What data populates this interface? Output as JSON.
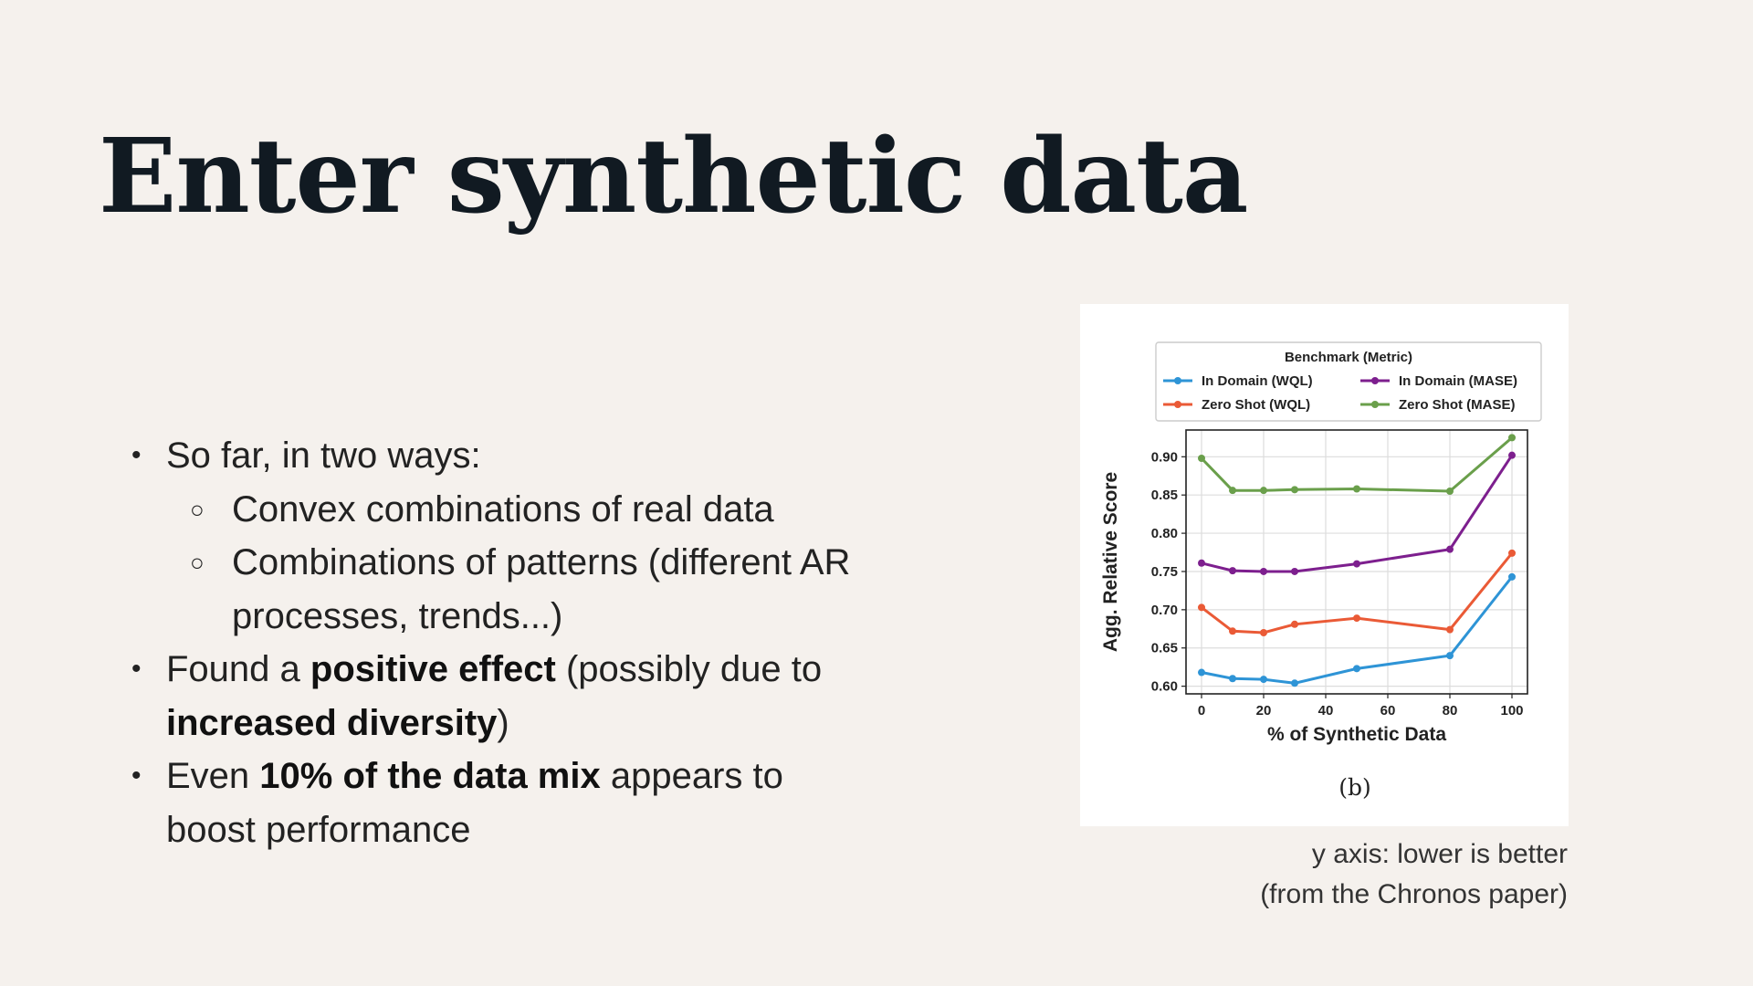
{
  "slide": {
    "title": "Enter synthetic data",
    "bullets": {
      "b1": "So far, in two ways:",
      "b1_sub1": "Convex combinations of real data",
      "b1_sub2_line1": "Combinations of patterns (different AR",
      "b1_sub2_line2": "processes, trends...)",
      "b2_pre": "Found a ",
      "b2_bold1": "positive effect",
      "b2_mid": " (possibly due to",
      "b2_bold2": "increased diversity",
      "b2_post": ")",
      "b3_pre": "Even ",
      "b3_bold": "10% of the data mix",
      "b3_post": " appears to",
      "b3_line2": "boost performance"
    },
    "caption": {
      "line1": "y axis: lower is better",
      "line2": "(from the Chronos paper)"
    }
  },
  "chart_data": {
    "type": "line",
    "title": "",
    "panel_label": "(b)",
    "xlabel": "% of Synthetic Data",
    "ylabel": "Agg. Relative Score",
    "xlim": [
      -5,
      105
    ],
    "ylim": [
      0.59,
      0.935
    ],
    "xticks": [
      0,
      20,
      40,
      60,
      80,
      100
    ],
    "yticks": [
      0.6,
      0.65,
      0.7,
      0.75,
      0.8,
      0.85,
      0.9
    ],
    "grid": true,
    "legend": {
      "title": "Benchmark (Metric)",
      "placement": "top"
    },
    "x": [
      0,
      10,
      20,
      30,
      50,
      80,
      100
    ],
    "series": [
      {
        "name": "In Domain (WQL)",
        "color": "#2e94d6",
        "values": [
          0.618,
          0.61,
          0.609,
          0.604,
          0.623,
          0.64,
          0.743
        ]
      },
      {
        "name": "Zero Shot (WQL)",
        "color": "#ea5a36",
        "values": [
          0.703,
          0.672,
          0.67,
          0.681,
          0.689,
          0.674,
          0.774
        ]
      },
      {
        "name": "In Domain (MASE)",
        "color": "#7d1f8e",
        "values": [
          0.761,
          0.751,
          0.75,
          0.75,
          0.76,
          0.779,
          0.902
        ]
      },
      {
        "name": "Zero Shot (MASE)",
        "color": "#6a9f4b",
        "values": [
          0.898,
          0.856,
          0.856,
          0.857,
          0.858,
          0.855,
          0.925
        ]
      }
    ]
  }
}
